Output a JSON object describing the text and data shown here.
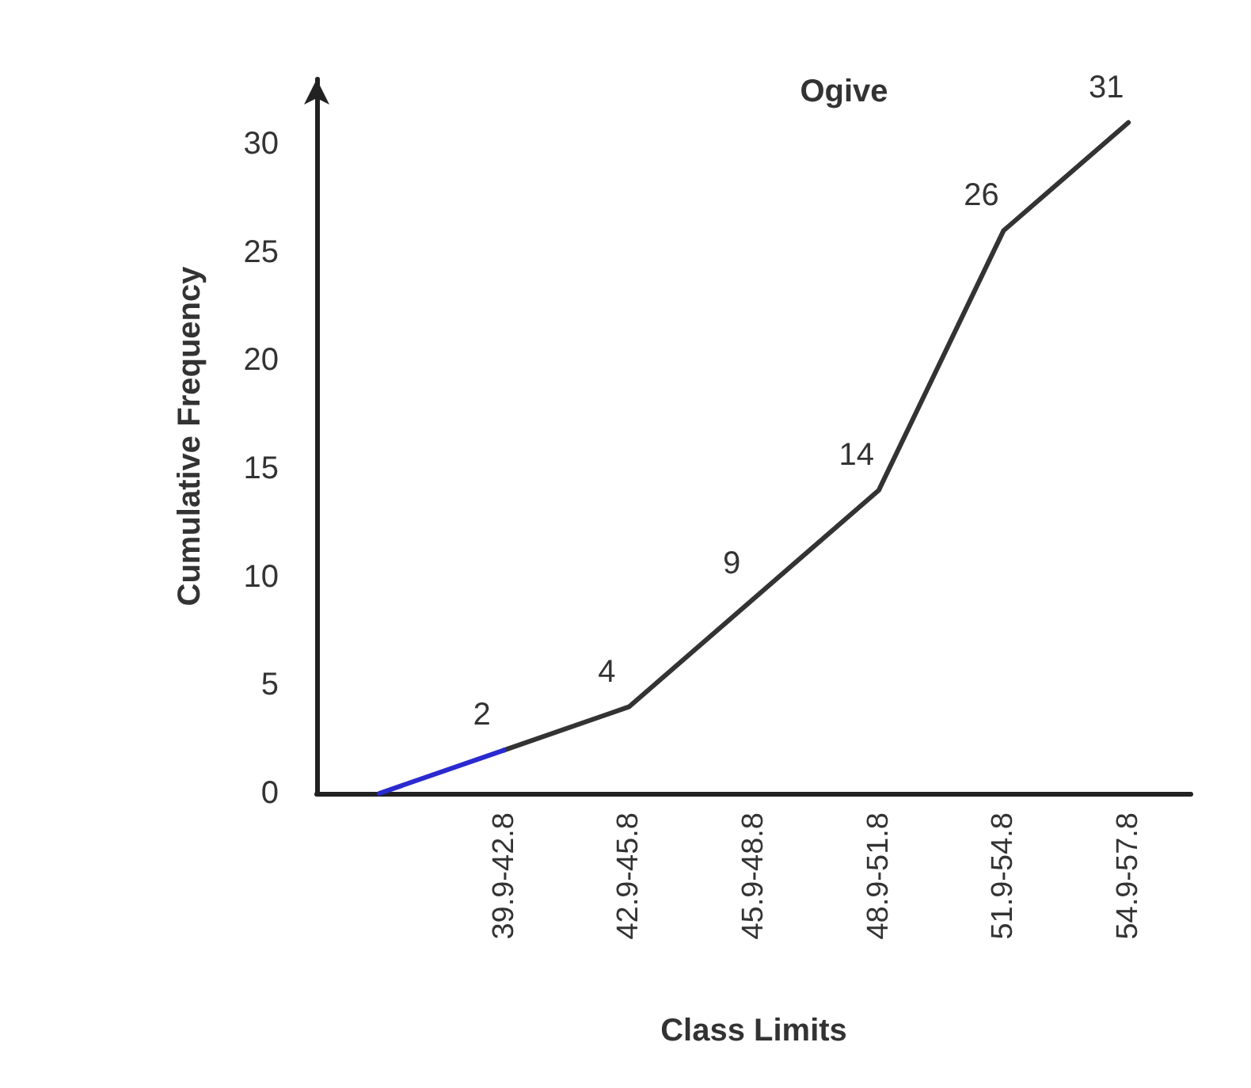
{
  "chart_data": {
    "type": "line",
    "title": "Ogive",
    "xlabel": "Class Limits",
    "ylabel": "Cumulative Frequency",
    "categories": [
      null,
      "39.9-42.8",
      "42.9-45.8",
      "45.9-48.8",
      "48.9-51.8",
      "51.9-54.8",
      "54.9-57.8"
    ],
    "series": [
      {
        "color": "#333333",
        "values": [
          null,
          2,
          4,
          9,
          14,
          26,
          31
        ],
        "value_labels": [
          null,
          "2",
          "4",
          "9",
          "14",
          "26",
          "31"
        ]
      },
      {
        "color": "#2a2ad0",
        "values": [
          0,
          2,
          null,
          null,
          null,
          null,
          null
        ]
      }
    ],
    "ylim": [
      0,
      33
    ],
    "yticks": [
      0,
      5,
      10,
      15,
      20,
      25,
      30
    ],
    "grid": false,
    "marker": "none"
  }
}
